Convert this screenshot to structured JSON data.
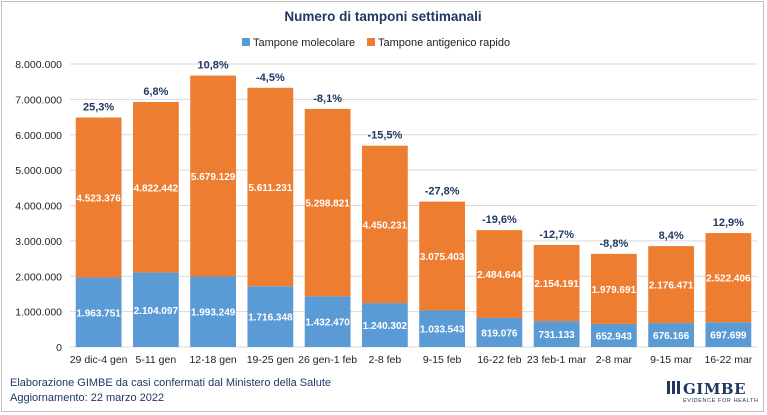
{
  "chart_data": {
    "type": "bar",
    "stacked": true,
    "title": "Numero di tamponi settimanali",
    "categories": [
      "29 dic-4 gen",
      "5-11 gen",
      "12-18 gen",
      "19-25 gen",
      "26 gen-1 feb",
      "2-8 feb",
      "9-15 feb",
      "16-22 feb",
      "23 feb-1 mar",
      "2-8 mar",
      "9-15 mar",
      "16-22 mar"
    ],
    "series": [
      {
        "name": "Tampone molecolare",
        "color": "#5b9bd5",
        "values": [
          1963751,
          2104097,
          1993249,
          1716348,
          1432470,
          1240302,
          1033543,
          819076,
          731133,
          652943,
          676166,
          697699
        ],
        "labels": [
          "1.963.751",
          "2.104.097",
          "1.993.249",
          "1.716.348",
          "1.432.470",
          "1.240.302",
          "1.033.543",
          "819.076",
          "731.133",
          "652.943",
          "676.166",
          "697.699"
        ]
      },
      {
        "name": "Tampone antigenico rapido",
        "color": "#ed7d31",
        "values": [
          4523376,
          4822442,
          5679129,
          5611231,
          5298821,
          4450231,
          3075403,
          2484644,
          2154191,
          1979691,
          2176471,
          2522406
        ],
        "labels": [
          "4.523.376",
          "4.822.442",
          "5.679.129",
          "5.611.231",
          "5.298.821",
          "4.450.231",
          "3.075.403",
          "2.484.644",
          "2.154.191",
          "1.979.691",
          "2.176.471",
          "2.522.406"
        ]
      }
    ],
    "annotations": [
      "25,3%",
      "6,8%",
      "10,8%",
      "-4,5%",
      "-8,1%",
      "-15,5%",
      "-27,8%",
      "-19,6%",
      "-12,7%",
      "-8,8%",
      "8,4%",
      "12,9%"
    ],
    "ylim": [
      0,
      8000000
    ],
    "yticks": [
      0,
      1000000,
      2000000,
      3000000,
      4000000,
      5000000,
      6000000,
      7000000,
      8000000
    ],
    "ytick_labels": [
      "0",
      "1.000.000",
      "2.000.000",
      "3.000.000",
      "4.000.000",
      "5.000.000",
      "6.000.000",
      "7.000.000",
      "8.000.000"
    ],
    "grid": true,
    "legend_position": "top-center"
  },
  "footer": {
    "source_line": "Elaborazione GIMBE da casi confermati dal Ministero della Salute",
    "update_line": "Aggiornamento: 22 marzo 2022"
  },
  "brand": {
    "name": "GIMBE",
    "tagline": "EVIDENCE FOR HEALTH",
    "color": "#1f3864"
  }
}
